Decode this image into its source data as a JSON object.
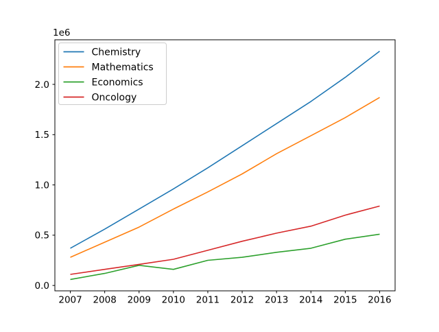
{
  "figure": {
    "background": "#ffffff"
  },
  "chart_data": {
    "type": "line",
    "title": "",
    "xlabel": "",
    "ylabel": "",
    "grid": false,
    "legend_position": "upper left",
    "y_offset_text": "1e6",
    "x": [
      2007,
      2008,
      2009,
      2010,
      2011,
      2012,
      2013,
      2014,
      2015,
      2016
    ],
    "x_tick_labels": [
      "2007",
      "2008",
      "2009",
      "2010",
      "2011",
      "2012",
      "2013",
      "2014",
      "2015",
      "2016"
    ],
    "y_ticks": [
      0,
      500000,
      1000000,
      1500000,
      2000000
    ],
    "y_tick_labels": [
      "0.0",
      "0.5",
      "1.0",
      "1.5",
      "2.0"
    ],
    "xlim": [
      2006.55,
      2016.45
    ],
    "ylim": [
      -53500,
      2443500
    ],
    "series": [
      {
        "name": "Chemistry",
        "color": "#1f77b4",
        "values": [
          370000,
          560000,
          760000,
          960000,
          1170000,
          1390000,
          1610000,
          1830000,
          2070000,
          2330000
        ]
      },
      {
        "name": "Mathematics",
        "color": "#ff7f0e",
        "values": [
          280000,
          430000,
          580000,
          760000,
          930000,
          1110000,
          1310000,
          1490000,
          1670000,
          1870000
        ]
      },
      {
        "name": "Economics",
        "color": "#2ca02c",
        "values": [
          60000,
          120000,
          200000,
          160000,
          250000,
          280000,
          330000,
          370000,
          460000,
          510000
        ]
      },
      {
        "name": "Oncology",
        "color": "#d62728",
        "values": [
          110000,
          160000,
          210000,
          260000,
          350000,
          440000,
          520000,
          590000,
          700000,
          790000
        ]
      }
    ],
    "legend": {
      "entries": [
        "Chemistry",
        "Mathematics",
        "Economics",
        "Oncology"
      ],
      "border_color": "#cccccc",
      "background": "#ffffff"
    },
    "axis_color": "#000000"
  }
}
